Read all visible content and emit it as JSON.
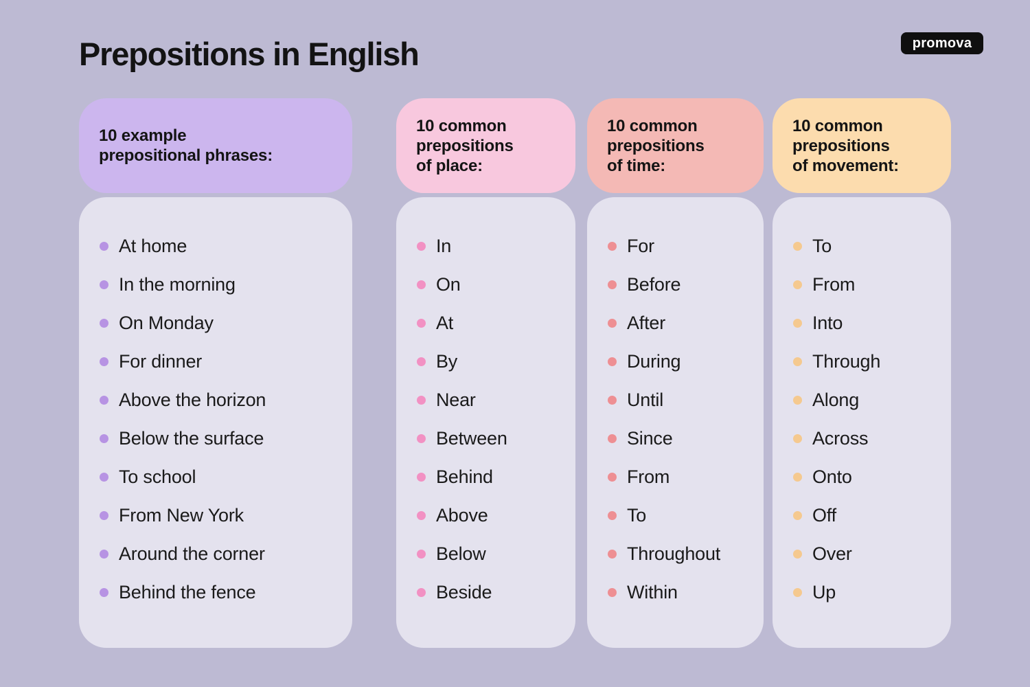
{
  "page": {
    "title": "Prepositions in English",
    "logo_text": "promova",
    "background_color": "#bdbad3",
    "panel_color": "#e4e2ee",
    "text_color": "#141414",
    "logo_bg_color": "#0f0f0f"
  },
  "columns": [
    {
      "id": "phrases",
      "header": "10 example\nprepositional phrases:",
      "header_bg": "#ccb6ee",
      "bullet_color": "#b793e3",
      "items": [
        "At home",
        "In the morning",
        "On Monday",
        "For dinner",
        "Above the horizon",
        "Below the surface",
        "To school",
        "From New York",
        "Around the corner",
        "Behind the fence"
      ]
    },
    {
      "id": "place",
      "header": "10 common\nprepositions\nof place:",
      "header_bg": "#f8c8de",
      "bullet_color": "#f291c3",
      "items": [
        "In",
        "On",
        "At",
        "By",
        "Near",
        "Between",
        "Behind",
        "Above",
        "Below",
        "Beside"
      ]
    },
    {
      "id": "time",
      "header": "10 common\nprepositions\nof time:",
      "header_bg": "#f4b9b5",
      "bullet_color": "#ee8f93",
      "items": [
        "For",
        "Before",
        "After",
        "During",
        "Until",
        "Since",
        "From",
        "To",
        "Throughout",
        "Within"
      ]
    },
    {
      "id": "movement",
      "header": "10 common\nprepositions\nof movement:",
      "header_bg": "#fcdcae",
      "bullet_color": "#f5c98f",
      "items": [
        "To",
        "From",
        "Into",
        "Through",
        "Along",
        "Across",
        "Onto",
        "Off",
        "Over",
        "Up"
      ]
    }
  ]
}
